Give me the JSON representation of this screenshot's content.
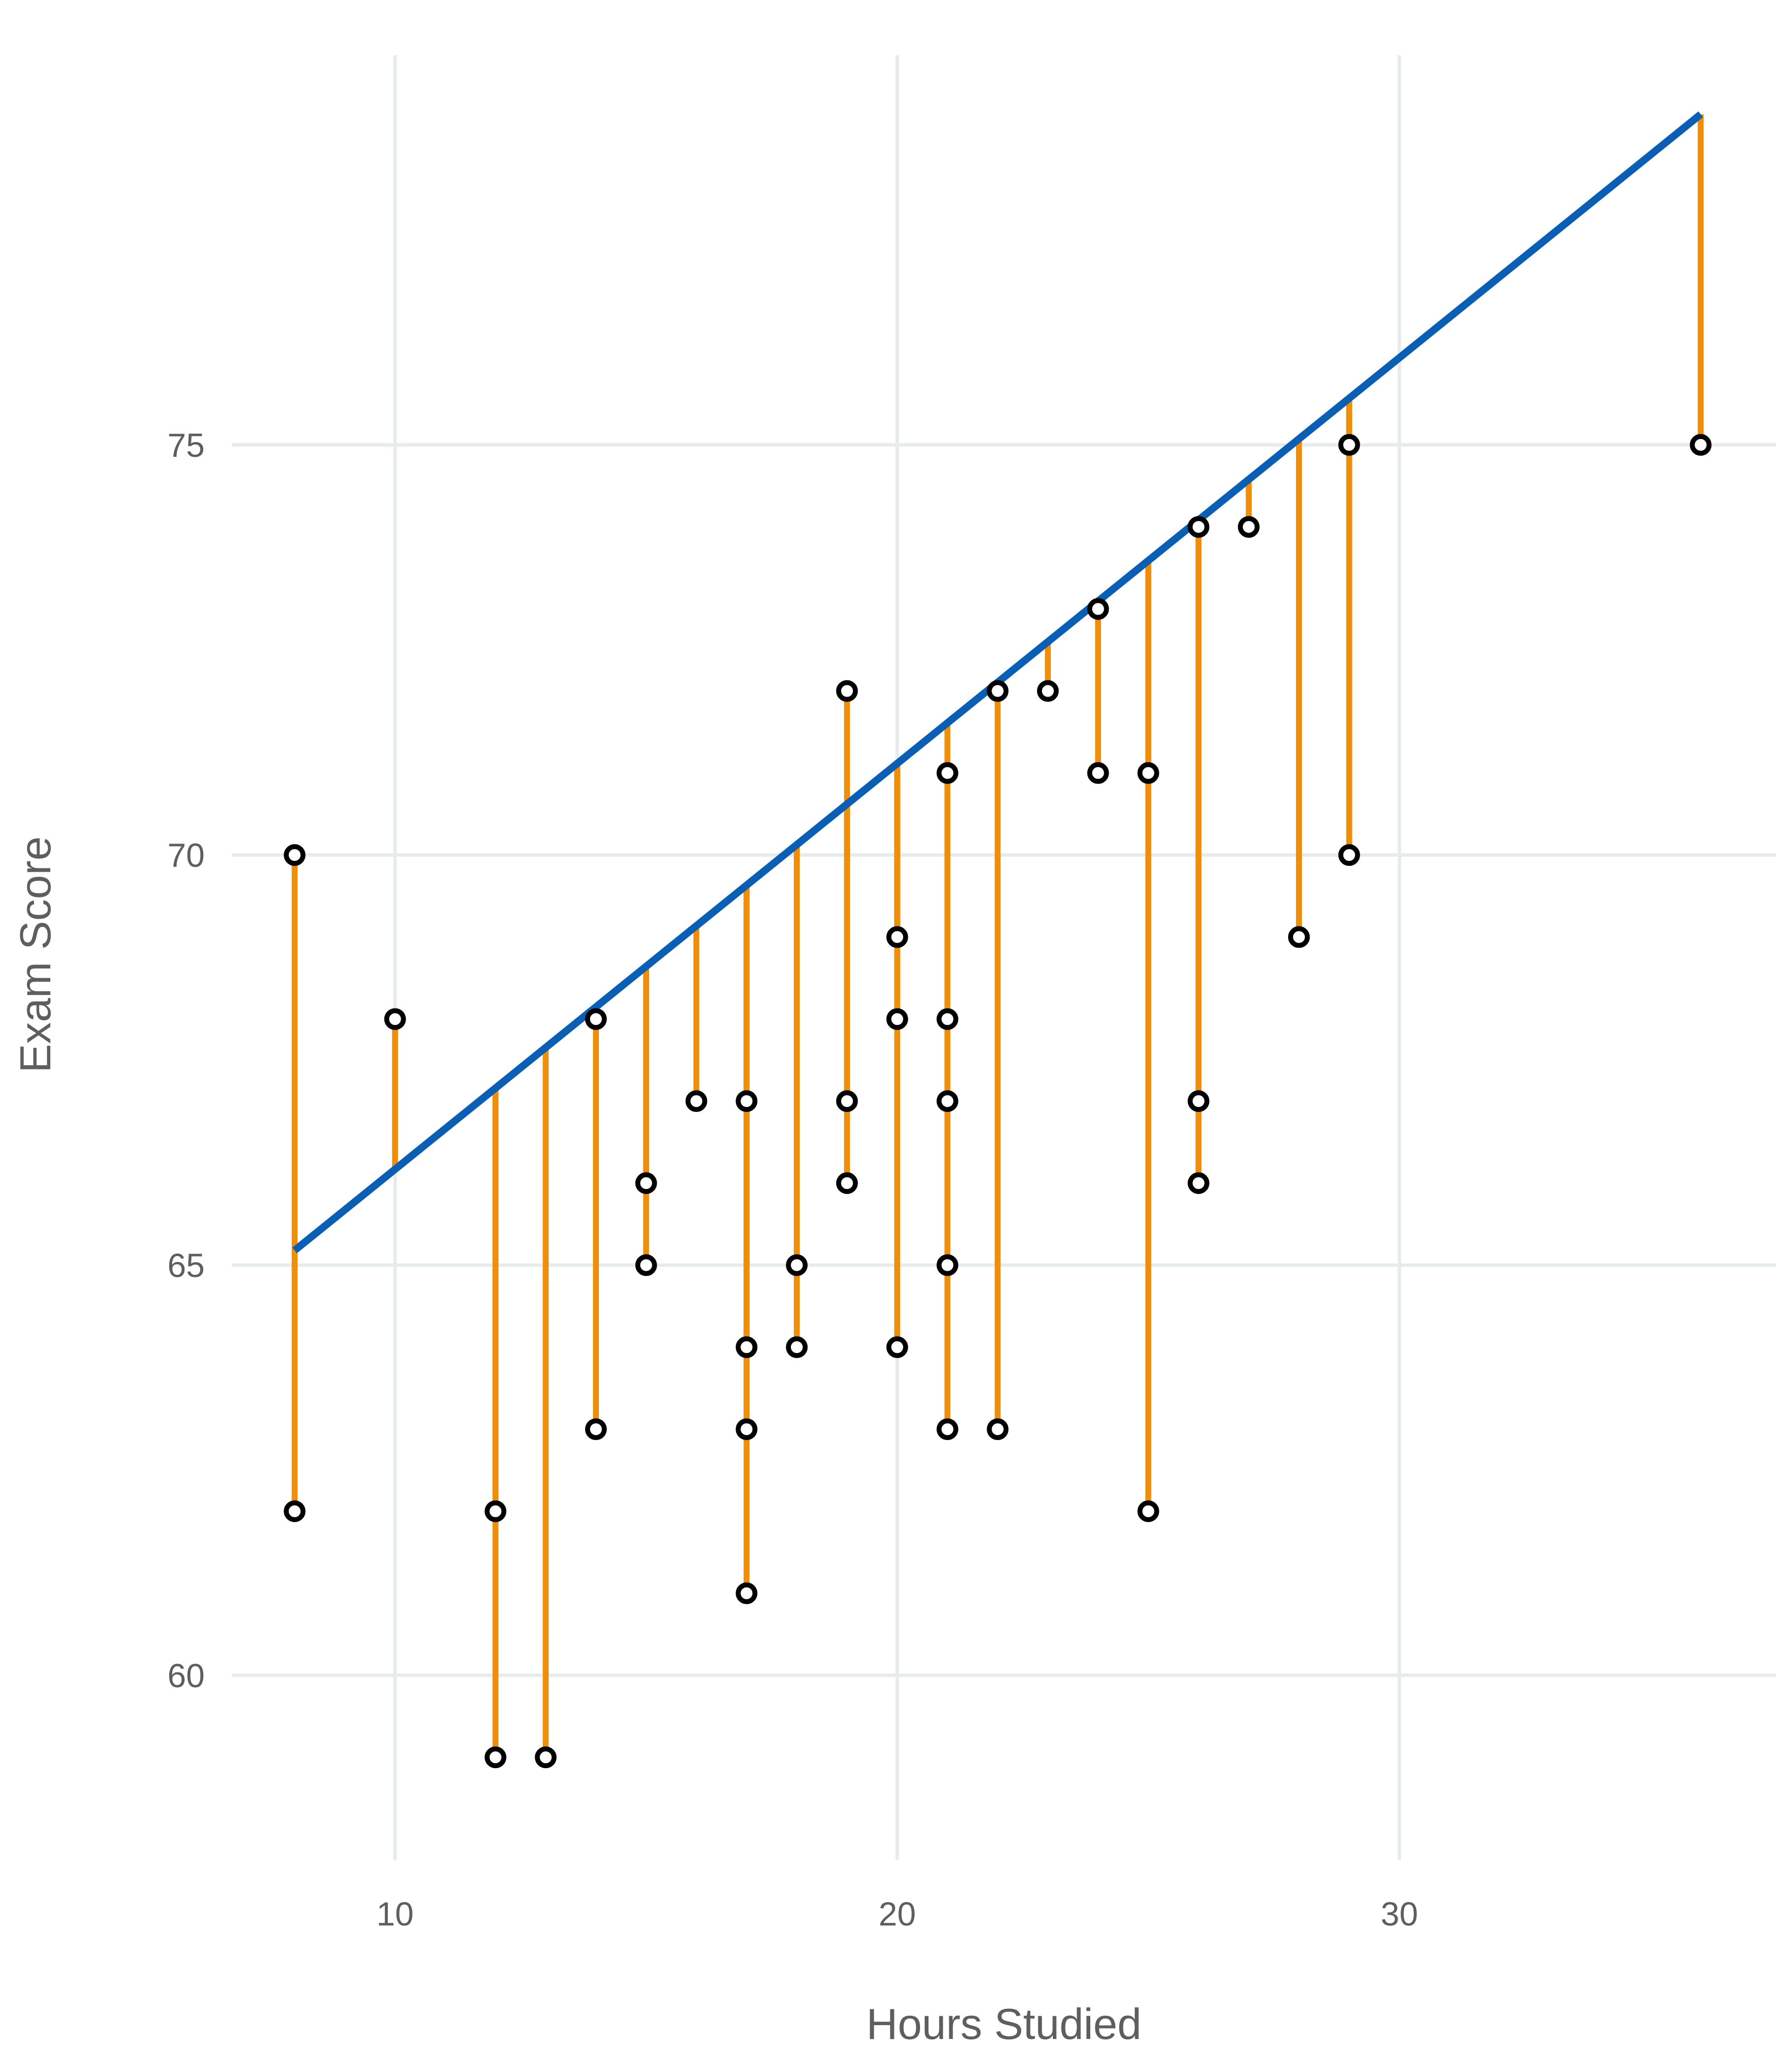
{
  "chart_data": {
    "type": "scatter",
    "title": "",
    "xlabel": "Hours Studied",
    "ylabel": "Exam Score",
    "xlim": [
      6.75,
      37.5
    ],
    "ylim": [
      57.75,
      79.75
    ],
    "x_ticks": [
      10,
      20,
      30
    ],
    "y_ticks": [
      60,
      65,
      70,
      75
    ],
    "grid": true,
    "legend": "none",
    "points": [
      {
        "x": 8,
        "y": 70
      },
      {
        "x": 8,
        "y": 62
      },
      {
        "x": 10,
        "y": 68
      },
      {
        "x": 12,
        "y": 62
      },
      {
        "x": 12,
        "y": 59
      },
      {
        "x": 13,
        "y": 59
      },
      {
        "x": 14,
        "y": 68
      },
      {
        "x": 14,
        "y": 63
      },
      {
        "x": 15,
        "y": 66
      },
      {
        "x": 15,
        "y": 65
      },
      {
        "x": 16,
        "y": 67
      },
      {
        "x": 17,
        "y": 67
      },
      {
        "x": 17,
        "y": 64
      },
      {
        "x": 17,
        "y": 63
      },
      {
        "x": 17,
        "y": 61
      },
      {
        "x": 18,
        "y": 65
      },
      {
        "x": 18,
        "y": 64
      },
      {
        "x": 19,
        "y": 72
      },
      {
        "x": 19,
        "y": 67
      },
      {
        "x": 19,
        "y": 66
      },
      {
        "x": 20,
        "y": 69
      },
      {
        "x": 20,
        "y": 68
      },
      {
        "x": 20,
        "y": 64
      },
      {
        "x": 21,
        "y": 71
      },
      {
        "x": 21,
        "y": 68
      },
      {
        "x": 21,
        "y": 67
      },
      {
        "x": 21,
        "y": 65
      },
      {
        "x": 21,
        "y": 63
      },
      {
        "x": 22,
        "y": 72
      },
      {
        "x": 22,
        "y": 63
      },
      {
        "x": 23,
        "y": 72
      },
      {
        "x": 24,
        "y": 73
      },
      {
        "x": 24,
        "y": 71
      },
      {
        "x": 25,
        "y": 71
      },
      {
        "x": 25,
        "y": 62
      },
      {
        "x": 26,
        "y": 74
      },
      {
        "x": 26,
        "y": 67
      },
      {
        "x": 26,
        "y": 66
      },
      {
        "x": 27,
        "y": 74
      },
      {
        "x": 28,
        "y": 69
      },
      {
        "x": 29,
        "y": 75
      },
      {
        "x": 29,
        "y": 70
      },
      {
        "x": 36,
        "y": 75
      }
    ],
    "fit_line": {
      "x_start": 8,
      "y_start": 65.18,
      "x_end": 36,
      "y_end": 79.03
    },
    "residual_lines": true,
    "colors": {
      "fit_line": "#0a5fb4",
      "residual": "#ee8e0a",
      "point_fill": "#ffffff",
      "point_stroke": "#000000",
      "grid": "#e6ecec",
      "text": "#5e5e5e"
    }
  }
}
